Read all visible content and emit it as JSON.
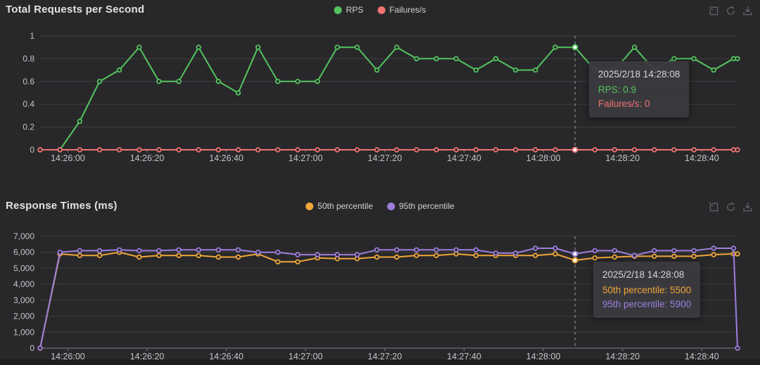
{
  "theme": {
    "background": "#28282a",
    "title_color": "#e2e2e2",
    "legend_text_color": "#d2d2d2",
    "grid_color": "#3e3e42",
    "axis_line_color": "#7b7b82",
    "axis_label_color": "#c4c4c8",
    "crosshair_color": "#9a9a9a",
    "toolbox_icon_color": "#616165",
    "tooltip_background": "#3a3a3e",
    "tooltip_title_color": "#d6d6d6",
    "highlight_dot_fill": "#ffffff"
  },
  "toolbox_buttons": [
    {
      "name": "data-zoom",
      "icon": "zoom-select-icon"
    },
    {
      "name": "restore",
      "icon": "restore-icon"
    },
    {
      "name": "save-as-image",
      "icon": "download-icon"
    }
  ],
  "chart_data": [
    {
      "type": "line",
      "slug": "total-requests-per-second",
      "title": "Total Requests per Second",
      "legend_position": "top-center",
      "grid": true,
      "ylim": [
        0,
        1
      ],
      "y_ticks": [
        0,
        0.2,
        0.4,
        0.6,
        0.8,
        1
      ],
      "y_tick_labels": [
        "0",
        "0.2",
        "0.4",
        "0.6",
        "0.8",
        "1"
      ],
      "x_tick_labels": [
        "14:26:00",
        "14:26:20",
        "14:26:40",
        "14:27:00",
        "14:27:20",
        "14:27:40",
        "14:28:00",
        "14:28:20",
        "14:28:40"
      ],
      "x": [
        "14:25:53",
        "14:25:58",
        "14:26:03",
        "14:26:08",
        "14:26:13",
        "14:26:18",
        "14:26:23",
        "14:26:28",
        "14:26:33",
        "14:26:38",
        "14:26:43",
        "14:26:48",
        "14:26:53",
        "14:26:58",
        "14:27:03",
        "14:27:08",
        "14:27:13",
        "14:27:18",
        "14:27:23",
        "14:27:28",
        "14:27:33",
        "14:27:38",
        "14:27:43",
        "14:27:48",
        "14:27:53",
        "14:27:58",
        "14:28:03",
        "14:28:08",
        "14:28:13",
        "14:28:18",
        "14:28:23",
        "14:28:28",
        "14:28:33",
        "14:28:38",
        "14:28:43",
        "14:28:48",
        "14:28:49"
      ],
      "series": [
        {
          "name": "RPS",
          "color": "#54c45e",
          "values": [
            0,
            0,
            0.25,
            0.6,
            0.7,
            0.9,
            0.6,
            0.6,
            0.9,
            0.6,
            0.5,
            0.9,
            0.6,
            0.6,
            0.6,
            0.9,
            0.9,
            0.7,
            0.9,
            0.8,
            0.8,
            0.8,
            0.7,
            0.8,
            0.7,
            0.7,
            0.9,
            0.9,
            0.7,
            0.7,
            0.9,
            0.7,
            0.8,
            0.8,
            0.7,
            0.8,
            0.8
          ]
        },
        {
          "name": "Failures/s",
          "color": "#f07372",
          "values": [
            0,
            0,
            0,
            0,
            0,
            0,
            0,
            0,
            0,
            0,
            0,
            0,
            0,
            0,
            0,
            0,
            0,
            0,
            0,
            0,
            0,
            0,
            0,
            0,
            0,
            0,
            0,
            0,
            0,
            0,
            0,
            0,
            0,
            0,
            0,
            0,
            0
          ]
        }
      ],
      "tooltip": {
        "title": "2025/2/18 14:28:08",
        "highlight_index": 27,
        "lines": [
          {
            "label": "RPS",
            "value": "0.9",
            "color": "#54c45e"
          },
          {
            "label": "Failures/s",
            "value": "0",
            "color": "#f07372"
          }
        ]
      }
    },
    {
      "type": "line",
      "slug": "response-times",
      "title": "Response Times (ms)",
      "legend_position": "top-center",
      "grid": true,
      "ylim": [
        0,
        7000
      ],
      "y_ticks": [
        0,
        1000,
        2000,
        3000,
        4000,
        5000,
        6000,
        7000
      ],
      "y_tick_labels": [
        "0",
        "1,000",
        "2,000",
        "3,000",
        "4,000",
        "5,000",
        "6,000",
        "7,000"
      ],
      "x_tick_labels": [
        "14:26:00",
        "14:26:20",
        "14:26:40",
        "14:27:00",
        "14:27:20",
        "14:27:40",
        "14:28:00",
        "14:28:20",
        "14:28:40"
      ],
      "x": [
        "14:25:53",
        "14:25:58",
        "14:26:03",
        "14:26:08",
        "14:26:13",
        "14:26:18",
        "14:26:23",
        "14:26:28",
        "14:26:33",
        "14:26:38",
        "14:26:43",
        "14:26:48",
        "14:26:53",
        "14:26:58",
        "14:27:03",
        "14:27:08",
        "14:27:13",
        "14:27:18",
        "14:27:23",
        "14:27:28",
        "14:27:33",
        "14:27:38",
        "14:27:43",
        "14:27:48",
        "14:27:53",
        "14:27:58",
        "14:28:03",
        "14:28:08",
        "14:28:13",
        "14:28:18",
        "14:28:23",
        "14:28:28",
        "14:28:33",
        "14:28:38",
        "14:28:43",
        "14:28:48",
        "14:28:49"
      ],
      "series": [
        {
          "name": "50th percentile",
          "color": "#f0a63a",
          "values": [
            0,
            5900,
            5800,
            5800,
            6000,
            5700,
            5800,
            5800,
            5800,
            5700,
            5700,
            5900,
            5400,
            5400,
            5650,
            5600,
            5600,
            5700,
            5700,
            5800,
            5800,
            5900,
            5800,
            5800,
            5800,
            5800,
            5900,
            5500,
            5650,
            5700,
            5750,
            5750,
            5750,
            5750,
            5850,
            5900,
            5900
          ]
        },
        {
          "name": "95th percentile",
          "color": "#9d7ede",
          "values": [
            0,
            6000,
            6100,
            6100,
            6150,
            6100,
            6100,
            6150,
            6150,
            6150,
            6150,
            6000,
            6000,
            5850,
            5850,
            5850,
            5850,
            6150,
            6150,
            6150,
            6150,
            6150,
            6150,
            5950,
            5950,
            6250,
            6250,
            5900,
            6100,
            6100,
            5800,
            6100,
            6100,
            6100,
            6250,
            6250,
            0
          ]
        }
      ],
      "tooltip": {
        "title": "2025/2/18 14:28:08",
        "highlight_index": 27,
        "lines": [
          {
            "label": "50th percentile",
            "value": "5500",
            "color": "#f0a63a"
          },
          {
            "label": "95th percentile",
            "value": "5900",
            "color": "#9d7ede"
          }
        ]
      }
    }
  ]
}
